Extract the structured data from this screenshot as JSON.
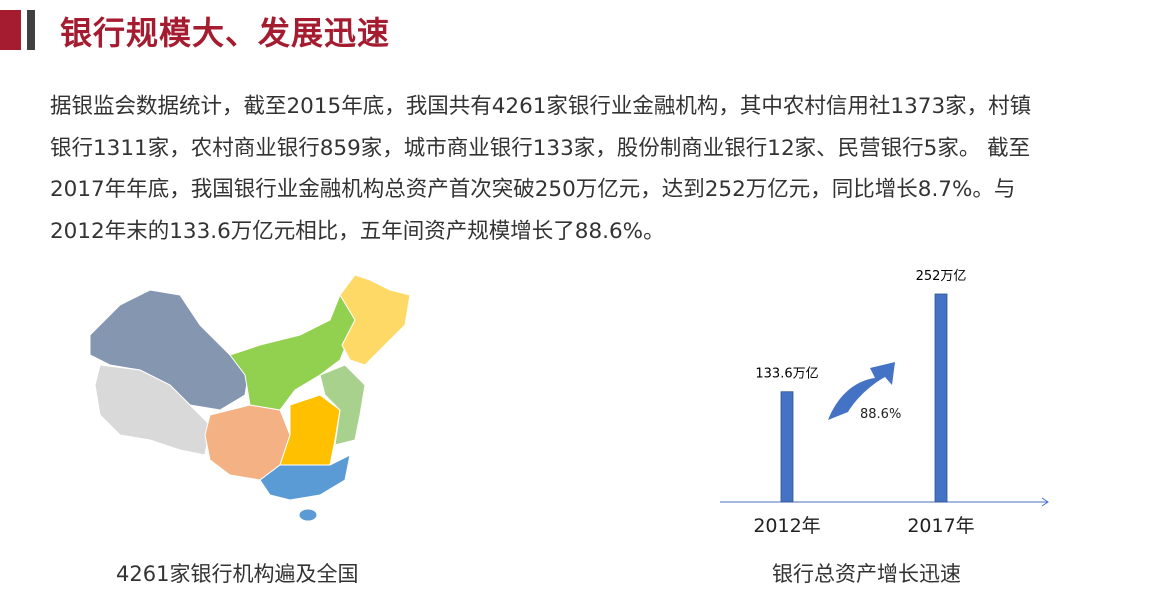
{
  "header": {
    "title": "银行规模大、发展迅速"
  },
  "body": {
    "lines": [
      "据银监会数据统计，截至2015年底，我国共有4261家银行业金融机构，其中农村信用社1373家，村镇",
      "银行1311家，农村商业银行859家，城市商业银行133家，股份制商业银行12家、民营银行5家。 截至",
      "2017年年底，我国银行业金融机构总资产首次突破250万亿元，达到252万亿元，同比增长8.7%。与",
      "2012年末的133.6万亿元相比，五年间资产规模增长了88.6%。"
    ]
  },
  "map": {
    "caption": "4261家银行机构遍及全国",
    "colors": {
      "northwest": "#8496B0",
      "tibet": "#D9D9D9",
      "southwest": "#F4B183",
      "north": "#92D050",
      "northeast": "#FFD966",
      "central": "#FFC000",
      "east": "#A9D18E",
      "south": "#5B9BD5"
    }
  },
  "chart": {
    "caption": "银行总资产增长迅速",
    "growth_label": "88.6%",
    "arrow_color": "#4472C4"
  },
  "chart_data": {
    "type": "bar",
    "categories": [
      "2012年",
      "2017年"
    ],
    "values": [
      133.6,
      252
    ],
    "data_labels": [
      "133.6万亿",
      "252万亿"
    ],
    "bar_color": "#4472C4",
    "annotation": "88.6%",
    "grid": false
  }
}
